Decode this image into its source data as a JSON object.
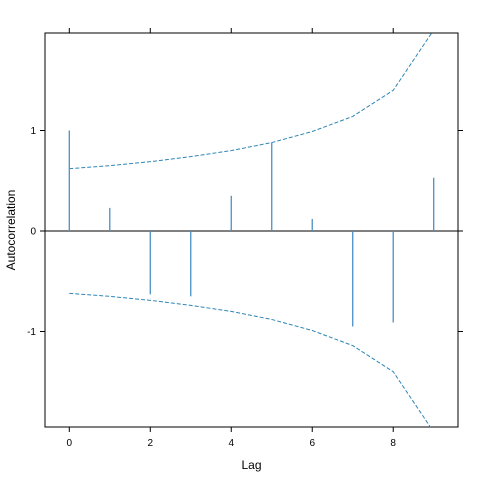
{
  "chart_data": {
    "type": "bar",
    "subtype": "acf-spikes",
    "xlabel": "Lag",
    "ylabel": "Autocorrelation",
    "xlim": [
      -0.6,
      9.6
    ],
    "ylim": [
      -1.95,
      1.97
    ],
    "x_ticks": [
      0,
      2,
      4,
      6,
      8
    ],
    "x_tick_labels": [
      "0",
      "2",
      "4",
      "6",
      "8"
    ],
    "y_ticks": [
      -1,
      0,
      1
    ],
    "y_tick_labels": [
      "-1",
      "0",
      "1"
    ],
    "grid": false,
    "x": [
      0,
      1,
      2,
      3,
      4,
      5,
      6,
      7,
      8,
      9
    ],
    "values": [
      1.0,
      0.23,
      -0.63,
      -0.65,
      0.35,
      0.88,
      0.12,
      -0.95,
      -0.91,
      0.53
    ],
    "confidence_band": {
      "x": [
        0,
        1,
        2,
        3,
        4,
        5,
        6,
        7,
        8,
        9
      ],
      "upper": [
        0.62,
        0.65,
        0.69,
        0.74,
        0.8,
        0.88,
        0.99,
        1.14,
        1.4,
        2.0
      ],
      "lower": [
        -0.62,
        -0.65,
        -0.69,
        -0.74,
        -0.8,
        -0.88,
        -0.99,
        -1.14,
        -1.4,
        -2.0
      ]
    },
    "colors": {
      "spike": "#4a90c4",
      "band": "#2f86b5",
      "axis": "#000000"
    }
  }
}
